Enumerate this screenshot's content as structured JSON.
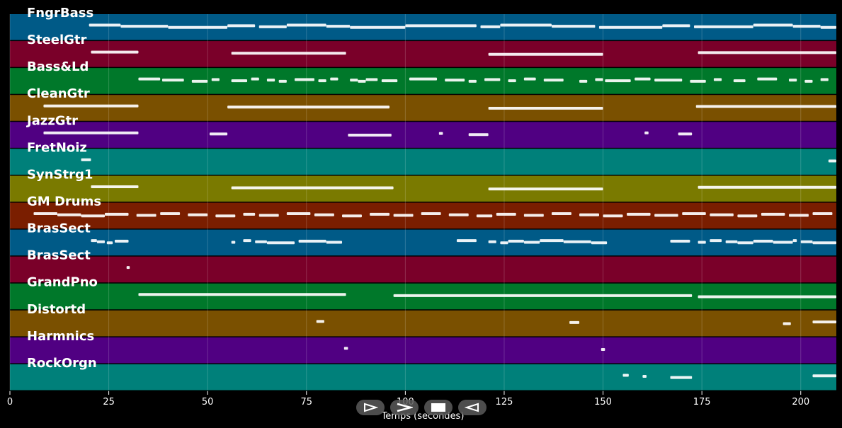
{
  "chart_data": {
    "type": "piano-roll",
    "xlabel": "Temps (secondes)",
    "xlim": [
      0,
      209
    ],
    "xticks": [
      0,
      25,
      50,
      75,
      100,
      125,
      150,
      175,
      200
    ],
    "grid": true,
    "tracks": [
      {
        "name": "FngrBass",
        "color": "#005a87",
        "notes": [
          [
            20,
            28
          ],
          [
            28,
            40
          ],
          [
            40,
            55
          ],
          [
            55,
            62
          ],
          [
            63,
            70
          ],
          [
            70,
            80
          ],
          [
            80,
            86
          ],
          [
            86,
            100
          ],
          [
            100,
            118
          ],
          [
            119,
            124
          ],
          [
            124,
            137
          ],
          [
            137,
            148
          ],
          [
            149,
            165
          ],
          [
            165,
            172
          ],
          [
            173,
            188
          ],
          [
            188,
            198
          ],
          [
            198,
            205
          ],
          [
            205,
            209
          ]
        ]
      },
      {
        "name": "SteelGtr",
        "color": "#7a0029",
        "notes": [
          [
            20.5,
            32.5
          ],
          [
            56,
            85
          ],
          [
            121,
            150
          ],
          [
            174,
            209
          ]
        ]
      },
      {
        "name": "Bass&Ld",
        "color": "#00782a",
        "notes": [
          [
            32.5,
            38
          ],
          [
            38.5,
            44
          ],
          [
            46,
            50
          ],
          [
            51,
            53
          ],
          [
            56,
            60
          ],
          [
            61,
            63
          ],
          [
            65,
            67
          ],
          [
            68,
            70
          ],
          [
            72,
            77
          ],
          [
            78,
            80
          ],
          [
            81,
            83
          ],
          [
            86,
            88
          ],
          [
            88,
            90
          ],
          [
            90,
            93
          ],
          [
            94,
            98
          ],
          [
            101,
            108
          ],
          [
            110,
            115
          ],
          [
            116,
            118
          ],
          [
            120,
            124
          ],
          [
            126,
            128
          ],
          [
            130,
            133
          ],
          [
            135,
            140
          ],
          [
            144,
            146
          ],
          [
            148,
            150
          ],
          [
            150.5,
            157
          ],
          [
            158,
            162
          ],
          [
            163,
            170
          ],
          [
            172,
            176
          ],
          [
            178,
            180
          ],
          [
            183,
            186
          ],
          [
            189,
            194
          ],
          [
            197,
            199
          ],
          [
            201,
            203
          ],
          [
            205,
            207
          ]
        ]
      },
      {
        "name": "CleanGtr",
        "color": "#7a5000",
        "notes": [
          [
            8.5,
            32.5
          ],
          [
            55,
            96
          ],
          [
            121,
            150
          ],
          [
            173.5,
            209
          ]
        ]
      },
      {
        "name": "JazzGtr",
        "color": "#500082",
        "notes": [
          [
            8.5,
            32.5
          ],
          [
            50.5,
            55
          ],
          [
            85.5,
            96.5
          ],
          [
            108.5,
            109.5
          ],
          [
            116,
            121
          ],
          [
            160.5,
            161.5
          ],
          [
            169,
            172.5
          ]
        ]
      },
      {
        "name": "FretNoiz",
        "color": "#00807a",
        "notes": [
          [
            18,
            20.5
          ],
          [
            207,
            209
          ]
        ]
      },
      {
        "name": "SynStrg1",
        "color": "#7a7a00",
        "notes": [
          [
            20.5,
            32.5
          ],
          [
            56,
            97
          ],
          [
            121,
            150
          ],
          [
            174,
            209
          ]
        ]
      },
      {
        "name": "GM Drums",
        "color": "#7a1e00",
        "notes": [
          [
            6,
            12
          ],
          [
            12,
            18
          ],
          [
            18,
            24
          ],
          [
            24,
            30
          ],
          [
            32,
            37
          ],
          [
            38,
            43
          ],
          [
            45,
            50
          ],
          [
            52,
            57
          ],
          [
            59,
            62
          ],
          [
            63,
            68
          ],
          [
            70,
            76
          ],
          [
            77,
            82
          ],
          [
            84,
            89
          ],
          [
            91,
            96
          ],
          [
            97,
            102
          ],
          [
            104,
            109
          ],
          [
            111,
            116
          ],
          [
            118,
            122
          ],
          [
            123,
            128
          ],
          [
            130,
            135
          ],
          [
            137,
            142
          ],
          [
            144,
            149
          ],
          [
            150,
            155
          ],
          [
            156,
            162
          ],
          [
            163,
            169
          ],
          [
            170,
            176
          ],
          [
            177,
            183
          ],
          [
            184,
            189
          ],
          [
            190,
            196
          ],
          [
            197,
            202
          ],
          [
            203,
            208
          ]
        ]
      },
      {
        "name": "BrasSect",
        "color": "#005a87",
        "notes": [
          [
            20.5,
            22
          ],
          [
            22,
            24
          ],
          [
            24.5,
            26
          ],
          [
            26.5,
            30
          ],
          [
            56,
            57
          ],
          [
            59,
            61
          ],
          [
            62,
            65
          ],
          [
            65,
            72
          ],
          [
            73,
            80
          ],
          [
            80,
            84
          ],
          [
            113,
            118
          ],
          [
            121,
            123
          ],
          [
            124,
            126
          ],
          [
            126,
            130
          ],
          [
            130,
            134
          ],
          [
            134,
            140
          ],
          [
            140,
            147
          ],
          [
            147,
            151
          ],
          [
            167,
            172
          ],
          [
            174,
            176
          ],
          [
            177,
            180
          ],
          [
            181,
            184
          ],
          [
            184,
            188
          ],
          [
            188,
            193
          ],
          [
            193,
            198
          ],
          [
            198,
            199
          ],
          [
            200,
            203
          ],
          [
            203,
            209
          ]
        ]
      },
      {
        "name": "BrasSect",
        "color": "#7a0029",
        "notes": [
          [
            29.5,
            30.3
          ]
        ]
      },
      {
        "name": "GrandPno",
        "color": "#00782a",
        "notes": [
          [
            32.5,
            85
          ],
          [
            97,
            172.5
          ],
          [
            174,
            209
          ]
        ]
      },
      {
        "name": "Distortd",
        "color": "#7a5000",
        "notes": [
          [
            77.5,
            79.5
          ],
          [
            141.5,
            144
          ],
          [
            195.5,
            197.5
          ],
          [
            203,
            209
          ]
        ]
      },
      {
        "name": "Harmnics",
        "color": "#500082",
        "notes": [
          [
            84.5,
            85.5
          ],
          [
            149.5,
            150.5
          ]
        ]
      },
      {
        "name": "RockOrgn",
        "color": "#00807a",
        "notes": [
          [
            155,
            156.5
          ],
          [
            160,
            161
          ],
          [
            167,
            172.5
          ],
          [
            203,
            209
          ]
        ]
      }
    ]
  },
  "controls": [
    {
      "name": "play-icon",
      "glyph": "play"
    },
    {
      "name": "forward-icon",
      "glyph": "forward"
    },
    {
      "name": "stop-icon",
      "glyph": "stop"
    },
    {
      "name": "rewind-icon",
      "glyph": "rewind"
    }
  ]
}
